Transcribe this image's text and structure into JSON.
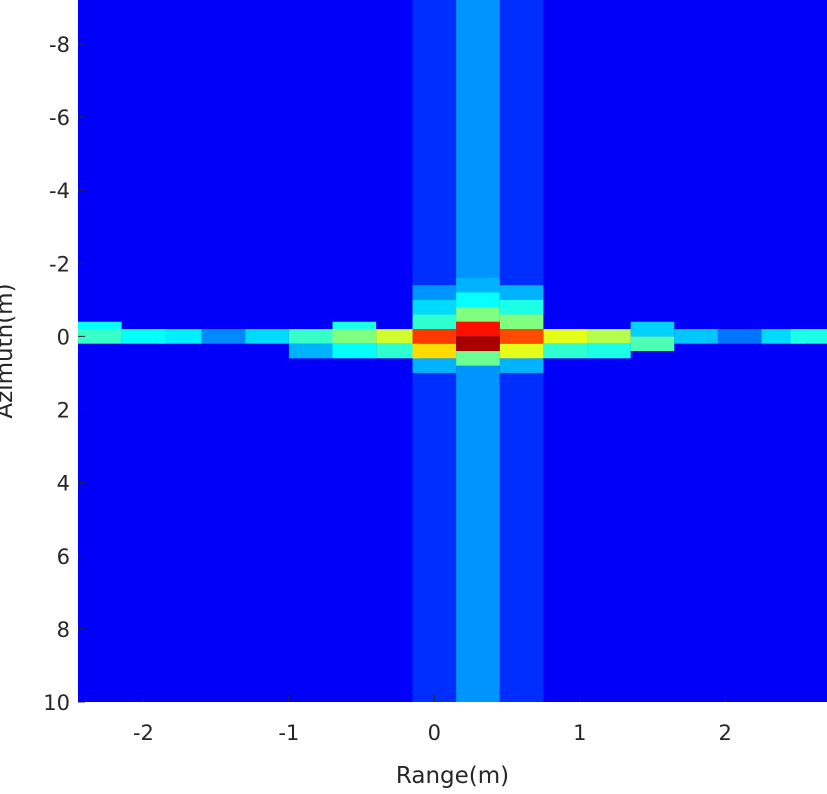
{
  "chart_data": {
    "type": "heatmap",
    "title": "",
    "xlabel": "Range(m)",
    "ylabel": "Azimuth(m)",
    "colormap": "jet",
    "xlim": [
      -2.45,
      2.7
    ],
    "ylim": [
      -9.2,
      10
    ],
    "y_reversed": true,
    "grid": false,
    "legend": "none",
    "x_ticks": [
      -2,
      -1,
      0,
      1,
      2
    ],
    "x_tick_labels": [
      "-2",
      "-1",
      "0",
      "1",
      "2"
    ],
    "y_ticks": [
      -8,
      -6,
      -4,
      -2,
      0,
      2,
      4,
      6,
      8,
      10
    ],
    "y_tick_labels": [
      "-8",
      "-6",
      "-4",
      "-2",
      "0",
      "2",
      "4",
      "6",
      "8",
      "10"
    ],
    "background_intensity": 0.12,
    "column_bands": [
      {
        "x_range": [
          -0.15,
          0.15
        ],
        "y_range": [
          -9.2,
          10
        ],
        "intensity": 0.17
      },
      {
        "x_range": [
          0.15,
          0.45
        ],
        "y_range": [
          -9.2,
          10
        ],
        "intensity": 0.27
      },
      {
        "x_range": [
          0.45,
          0.75
        ],
        "y_range": [
          -9.2,
          10
        ],
        "intensity": 0.17
      }
    ],
    "cells": [
      {
        "x": -2.3,
        "y": 0,
        "intensity": 0.43
      },
      {
        "x": -2.3,
        "y": -0.2,
        "intensity": 0.38
      },
      {
        "x": -2.0,
        "y": 0,
        "intensity": 0.38
      },
      {
        "x": -1.75,
        "y": 0,
        "intensity": 0.36
      },
      {
        "x": -1.45,
        "y": 0,
        "intensity": 0.26
      },
      {
        "x": -1.15,
        "y": 0,
        "intensity": 0.34
      },
      {
        "x": -0.85,
        "y": 0,
        "intensity": 0.43
      },
      {
        "x": -0.85,
        "y": 0.4,
        "intensity": 0.3
      },
      {
        "x": -0.55,
        "y": 0,
        "intensity": 0.5
      },
      {
        "x": -0.55,
        "y": -0.2,
        "intensity": 0.4
      },
      {
        "x": -0.55,
        "y": 0.4,
        "intensity": 0.38
      },
      {
        "x": -0.25,
        "y": 0,
        "intensity": 0.58
      },
      {
        "x": -0.25,
        "y": 0.4,
        "intensity": 0.42
      },
      {
        "x": 0.0,
        "y": -1.2,
        "intensity": 0.27
      },
      {
        "x": 0.0,
        "y": -0.8,
        "intensity": 0.34
      },
      {
        "x": 0.0,
        "y": -0.4,
        "intensity": 0.42
      },
      {
        "x": 0.0,
        "y": 0,
        "intensity": 0.82
      },
      {
        "x": 0.0,
        "y": 0.4,
        "intensity": 0.66
      },
      {
        "x": 0.0,
        "y": 0.8,
        "intensity": 0.3
      },
      {
        "x": 0.3,
        "y": -1.4,
        "intensity": 0.3
      },
      {
        "x": 0.3,
        "y": -1.0,
        "intensity": 0.38
      },
      {
        "x": 0.3,
        "y": -0.6,
        "intensity": 0.5
      },
      {
        "x": 0.3,
        "y": -0.2,
        "intensity": 0.86
      },
      {
        "x": 0.3,
        "y": 0.2,
        "intensity": 0.96
      },
      {
        "x": 0.3,
        "y": 0.6,
        "intensity": 0.48
      },
      {
        "x": 0.6,
        "y": -1.2,
        "intensity": 0.3
      },
      {
        "x": 0.6,
        "y": -0.8,
        "intensity": 0.4
      },
      {
        "x": 0.6,
        "y": -0.4,
        "intensity": 0.5
      },
      {
        "x": 0.6,
        "y": 0,
        "intensity": 0.8
      },
      {
        "x": 0.6,
        "y": 0.4,
        "intensity": 0.6
      },
      {
        "x": 0.6,
        "y": 0.8,
        "intensity": 0.3
      },
      {
        "x": 0.9,
        "y": 0,
        "intensity": 0.6
      },
      {
        "x": 0.9,
        "y": 0.4,
        "intensity": 0.42
      },
      {
        "x": 1.2,
        "y": 0,
        "intensity": 0.55
      },
      {
        "x": 1.2,
        "y": 0.4,
        "intensity": 0.4
      },
      {
        "x": 1.5,
        "y": -0.2,
        "intensity": 0.33
      },
      {
        "x": 1.5,
        "y": 0.2,
        "intensity": 0.45
      },
      {
        "x": 1.8,
        "y": 0,
        "intensity": 0.32
      },
      {
        "x": 2.1,
        "y": 0,
        "intensity": 0.24
      },
      {
        "x": 2.4,
        "y": 0,
        "intensity": 0.34
      },
      {
        "x": 2.6,
        "y": 0,
        "intensity": 0.4
      }
    ],
    "cell_width": 0.3,
    "cell_height": 0.4
  }
}
